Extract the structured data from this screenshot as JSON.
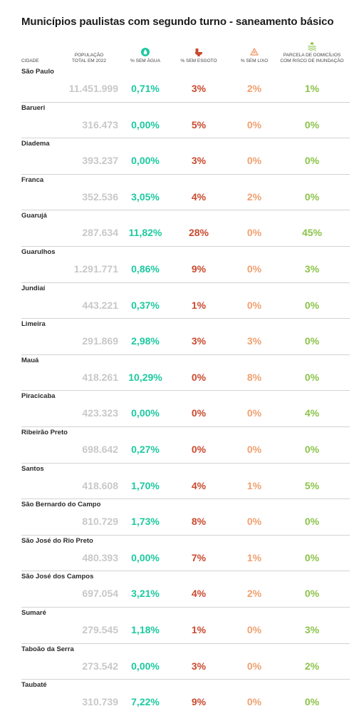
{
  "title": "Municípios paulistas com segundo turno - saneamento básico",
  "columns": {
    "cidade": "CIDADE",
    "populacao_l1": "POPULAÇÃO",
    "populacao_l2": "TOTAL EM 2022",
    "agua": "% SEM ÁGUA",
    "esgoto": "% SEM ESGOTO",
    "lixo": "% SEM LIXO",
    "inundacao_l1": "PARCELA DE DOMICÍLIOS",
    "inundacao_l2": "COM RISCO DE INUNDAÇÃO"
  },
  "icons": {
    "agua": "water-drop-icon",
    "esgoto": "toilet-icon",
    "lixo": "recycle-icon",
    "inundacao": "flood-icon"
  },
  "colors": {
    "agua": "#1ec9a0",
    "esgoto": "#c94a2e",
    "lixo": "#f0a070",
    "inundacao": "#8cc34a",
    "populacao": "#c8c8c8"
  },
  "rows": [
    {
      "cidade": "São Paulo",
      "populacao": "11.451.999",
      "agua": "0,71%",
      "esgoto": "3%",
      "lixo": "2%",
      "inundacao": "1%"
    },
    {
      "cidade": "Barueri",
      "populacao": "316.473",
      "agua": "0,00%",
      "esgoto": "5%",
      "lixo": "0%",
      "inundacao": "0%"
    },
    {
      "cidade": "Diadema",
      "populacao": "393.237",
      "agua": "0,00%",
      "esgoto": "3%",
      "lixo": "0%",
      "inundacao": "0%"
    },
    {
      "cidade": "Franca",
      "populacao": "352.536",
      "agua": "3,05%",
      "esgoto": "4%",
      "lixo": "2%",
      "inundacao": "0%"
    },
    {
      "cidade": "Guarujá",
      "populacao": "287.634",
      "agua": "11,82%",
      "esgoto": "28%",
      "lixo": "0%",
      "inundacao": "45%"
    },
    {
      "cidade": "Guarulhos",
      "populacao": "1.291.771",
      "agua": "0,86%",
      "esgoto": "9%",
      "lixo": "0%",
      "inundacao": "3%"
    },
    {
      "cidade": "Jundiaí",
      "populacao": "443.221",
      "agua": "0,37%",
      "esgoto": "1%",
      "lixo": "0%",
      "inundacao": "0%"
    },
    {
      "cidade": "Limeira",
      "populacao": "291.869",
      "agua": "2,98%",
      "esgoto": "3%",
      "lixo": "3%",
      "inundacao": "0%"
    },
    {
      "cidade": "Mauá",
      "populacao": "418.261",
      "agua": "10,29%",
      "esgoto": "0%",
      "lixo": "8%",
      "inundacao": "0%"
    },
    {
      "cidade": "Piracicaba",
      "populacao": "423.323",
      "agua": "0,00%",
      "esgoto": "0%",
      "lixo": "0%",
      "inundacao": "4%"
    },
    {
      "cidade": "Ribeirão Preto",
      "populacao": "698.642",
      "agua": "0,27%",
      "esgoto": "0%",
      "lixo": "0%",
      "inundacao": "0%"
    },
    {
      "cidade": "Santos",
      "populacao": "418.608",
      "agua": "1,70%",
      "esgoto": "4%",
      "lixo": "1%",
      "inundacao": "5%"
    },
    {
      "cidade": "São Bernardo do Campo",
      "populacao": "810.729",
      "agua": "1,73%",
      "esgoto": "8%",
      "lixo": "0%",
      "inundacao": "0%"
    },
    {
      "cidade": "São José do Rio Preto",
      "populacao": "480.393",
      "agua": "0,00%",
      "esgoto": "7%",
      "lixo": "1%",
      "inundacao": "0%"
    },
    {
      "cidade": "São José dos Campos",
      "populacao": "697.054",
      "agua": "3,21%",
      "esgoto": "4%",
      "lixo": "2%",
      "inundacao": "0%"
    },
    {
      "cidade": "Sumaré",
      "populacao": "279.545",
      "agua": "1,18%",
      "esgoto": "1%",
      "lixo": "0%",
      "inundacao": "3%"
    },
    {
      "cidade": "Taboão da Serra",
      "populacao": "273.542",
      "agua": "0,00%",
      "esgoto": "3%",
      "lixo": "0%",
      "inundacao": "2%"
    },
    {
      "cidade": "Taubaté",
      "populacao": "310.739",
      "agua": "7,22%",
      "esgoto": "9%",
      "lixo": "0%",
      "inundacao": "0%"
    }
  ]
}
